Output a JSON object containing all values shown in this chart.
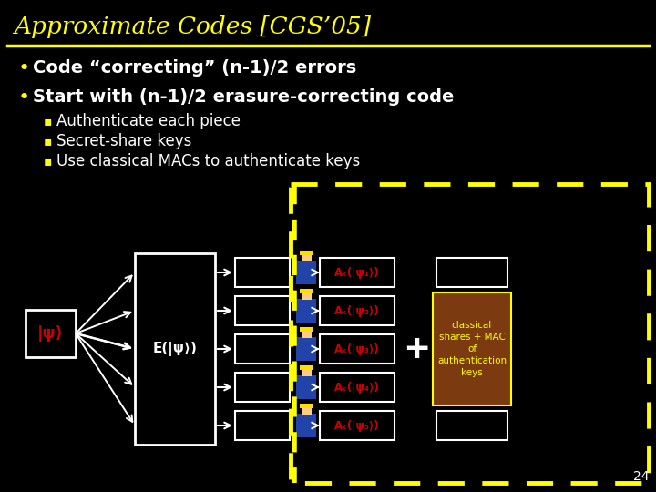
{
  "title": "Approximate Codes [CGS’05]",
  "title_color": "#FFFF00",
  "bg_color": "#000000",
  "separator_color": "#FFFF00",
  "bullet1": "Code “correcting” (n-1)/2 errors",
  "bullet2": "Start with (n-1)/2 erasure-correcting code",
  "sub_bullet1": "Authenticate each piece",
  "sub_bullet2": "Secret-share keys",
  "sub_bullet3": "Use classical MACs to authenticate keys",
  "bullet_color": "#FFFFFF",
  "sub_bullet_color": "#FFFFFF",
  "bullet_marker_color": "#FFFF00",
  "page_number": "24",
  "dashed_box_color": "#FFFF00",
  "brown_box_color": "#7B3A10",
  "brown_box_text": "classical\nshares + MAC\nof\nauthentication\nkeys",
  "psi_label": "|ψ⟩",
  "encode_label": "E(|ψ⟩)",
  "ak_labels": [
    "Aₖ(|ψ₁⟩)",
    "Aₖ(|ψ₂⟩)",
    "Aₖ(|ψ₃⟩)",
    "Aₖ(|ψ₄⟩)",
    "Aₖ(|ψ₅⟩)"
  ],
  "plus_color": "#FFFFFF",
  "white": "#FFFFFF",
  "red_label": "#CC0000"
}
